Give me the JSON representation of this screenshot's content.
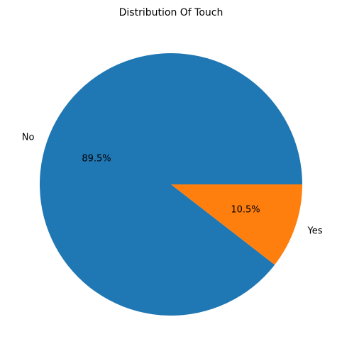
{
  "chart_data": {
    "type": "pie",
    "title": "Distribution Of Touch",
    "categories": [
      "No",
      "Yes"
    ],
    "values": [
      89.5,
      10.5
    ],
    "value_labels": [
      "89.5%",
      "10.5%"
    ],
    "colors": [
      "#1f77b4",
      "#ff7f0e"
    ],
    "start_angle_deg": 0,
    "direction": "counterclockwise",
    "legend": "none"
  }
}
